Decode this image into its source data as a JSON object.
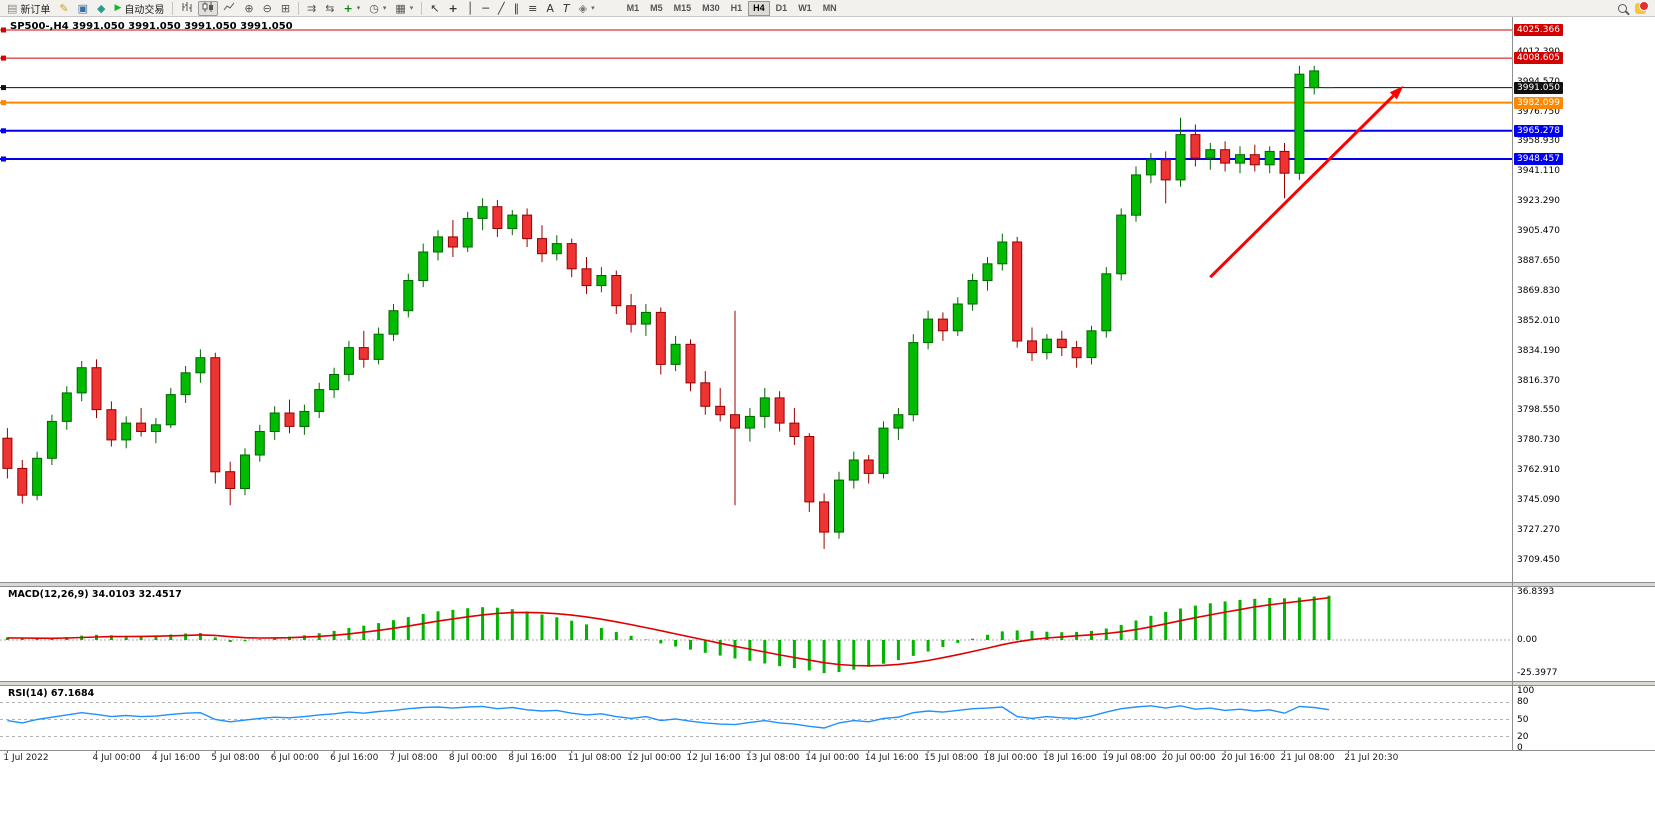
{
  "toolbar": {
    "new_order_label": "新订单",
    "autotrading_label": "自动交易",
    "timeframes": [
      "M1",
      "M5",
      "M15",
      "M30",
      "H1",
      "H4",
      "D1",
      "W1",
      "MN"
    ],
    "active_timeframe": "H4"
  },
  "icons": {
    "new_order": "▤",
    "metaeditor": "✎",
    "market": "▣",
    "signals": "◆",
    "autotrading": "▶",
    "zoom_in": "⊕",
    "zoom_out": "⊖",
    "grid": "⊞",
    "auto_scroll": "⇉",
    "chart_shift": "⇆",
    "indicators": "+",
    "periods": "◷",
    "templates": "▦",
    "caret": "▾",
    "cursor": "↖",
    "crosshair": "+",
    "vline": "│",
    "hline": "─",
    "trendline": "╱",
    "channel": "∥",
    "fibonacci": "≡",
    "text": "A",
    "text_label": "T",
    "shapes": "◈"
  },
  "chart": {
    "info_line": "SP500-,H4 3991.050 3991.050 3991.050 3991.050",
    "symbol": "SP500-",
    "period": "H4",
    "colors": {
      "up": "#00BB00",
      "up_border": "#006600",
      "down": "#EE3333",
      "down_border": "#990000",
      "arrow": "#FF0000",
      "macd_hist": "#00B400",
      "macd_signal": "#E00000",
      "rsi_line": "#1E90FF"
    },
    "price_levels": [
      {
        "label": "4025.366",
        "price": 4025.366,
        "color": "#D40000",
        "width": 1
      },
      {
        "label": "4008.605",
        "price": 4008.605,
        "color": "#D40000",
        "width": 1
      },
      {
        "label": "3991.050",
        "price": 3991.05,
        "color": "#111111",
        "width": 1
      },
      {
        "label": "3982.099",
        "price": 3982.099,
        "color": "#FF8800",
        "width": 2
      },
      {
        "label": "3965.278",
        "price": 3965.278,
        "color": "#0000EE",
        "width": 2
      },
      {
        "label": "3948.457",
        "price": 3948.457,
        "color": "#0000EE",
        "width": 2
      }
    ],
    "price_axis_ticks": [
      "4012.390",
      "3994.570",
      "3976.750",
      "3958.930",
      "3941.110",
      "3923.290",
      "3905.470",
      "3887.650",
      "3869.830",
      "3852.010",
      "3834.190",
      "3816.370",
      "3798.550",
      "3780.730",
      "3762.910",
      "3745.090",
      "3727.270",
      "3709.450"
    ],
    "time_axis": [
      {
        "label": "1 Jul 2022",
        "bar": 0
      },
      {
        "label": "4 Jul 00:00",
        "bar": 6
      },
      {
        "label": "4 Jul 16:00",
        "bar": 10
      },
      {
        "label": "5 Jul 08:00",
        "bar": 14
      },
      {
        "label": "6 Jul 00:00",
        "bar": 18
      },
      {
        "label": "6 Jul 16:00",
        "bar": 22
      },
      {
        "label": "7 Jul 08:00",
        "bar": 26
      },
      {
        "label": "8 Jul 00:00",
        "bar": 30
      },
      {
        "label": "8 Jul 16:00",
        "bar": 34
      },
      {
        "label": "11 Jul 08:00",
        "bar": 38
      },
      {
        "label": "12 Jul 00:00",
        "bar": 42
      },
      {
        "label": "12 Jul 16:00",
        "bar": 46
      },
      {
        "label": "13 Jul 08:00",
        "bar": 50
      },
      {
        "label": "14 Jul 00:00",
        "bar": 54
      },
      {
        "label": "14 Jul 16:00",
        "bar": 58
      },
      {
        "label": "15 Jul 08:00",
        "bar": 62
      },
      {
        "label": "18 Jul 00:00",
        "bar": 66
      },
      {
        "label": "18 Jul 16:00",
        "bar": 70
      },
      {
        "label": "19 Jul 08:00",
        "bar": 74
      },
      {
        "label": "20 Jul 00:00",
        "bar": 78
      },
      {
        "label": "20 Jul 16:00",
        "bar": 82
      },
      {
        "label": "21 Jul 08:00",
        "bar": 86
      },
      {
        "label": "21 Jul 20:30",
        "bar": 90.3
      }
    ]
  },
  "macd": {
    "title": "MACD(12,26,9) 34.0103 32.4517",
    "scale": [
      "36.8393",
      "0.00",
      "-25.3977"
    ]
  },
  "rsi": {
    "title": "RSI(14) 67.1684",
    "levels": [
      "100",
      "80",
      "50",
      "20",
      "0"
    ],
    "dashed": [
      80,
      50,
      20
    ]
  },
  "chart_data": {
    "type": "candlestick",
    "symbol": "SP500",
    "timeframe": "H4",
    "visible_range": {
      "from": "1 Jul 2022 00:00",
      "to": "21 Jul 2022 20:30"
    },
    "ohlc": [
      [
        3782,
        3788,
        3758,
        3764
      ],
      [
        3764,
        3769,
        3743,
        3748
      ],
      [
        3748,
        3774,
        3745,
        3770
      ],
      [
        3770,
        3796,
        3766,
        3792
      ],
      [
        3792,
        3813,
        3787,
        3809
      ],
      [
        3809,
        3828,
        3804,
        3824
      ],
      [
        3824,
        3829,
        3794,
        3799
      ],
      [
        3799,
        3804,
        3777,
        3781
      ],
      [
        3781,
        3795,
        3776,
        3791
      ],
      [
        3791,
        3800,
        3783,
        3786
      ],
      [
        3786,
        3794,
        3779,
        3790
      ],
      [
        3790,
        3812,
        3788,
        3808
      ],
      [
        3808,
        3825,
        3803,
        3821
      ],
      [
        3821,
        3835,
        3815,
        3830
      ],
      [
        3830,
        3833,
        3755,
        3762
      ],
      [
        3762,
        3768,
        3742,
        3752
      ],
      [
        3752,
        3776,
        3748,
        3772
      ],
      [
        3772,
        3790,
        3768,
        3786
      ],
      [
        3786,
        3801,
        3781,
        3797
      ],
      [
        3797,
        3805,
        3785,
        3789
      ],
      [
        3789,
        3802,
        3784,
        3798
      ],
      [
        3798,
        3815,
        3794,
        3811
      ],
      [
        3811,
        3824,
        3806,
        3820
      ],
      [
        3820,
        3840,
        3816,
        3836
      ],
      [
        3836,
        3846,
        3824,
        3829
      ],
      [
        3829,
        3848,
        3826,
        3844
      ],
      [
        3844,
        3862,
        3840,
        3858
      ],
      [
        3858,
        3880,
        3854,
        3876
      ],
      [
        3876,
        3898,
        3872,
        3893
      ],
      [
        3893,
        3906,
        3888,
        3902
      ],
      [
        3902,
        3912,
        3890,
        3896
      ],
      [
        3896,
        3917,
        3893,
        3913
      ],
      [
        3913,
        3925,
        3906,
        3920
      ],
      [
        3920,
        3924,
        3902,
        3907
      ],
      [
        3907,
        3918,
        3903,
        3915
      ],
      [
        3915,
        3919,
        3896,
        3901
      ],
      [
        3901,
        3909,
        3887,
        3892
      ],
      [
        3892,
        3903,
        3888,
        3898
      ],
      [
        3898,
        3901,
        3878,
        3883
      ],
      [
        3883,
        3890,
        3868,
        3873
      ],
      [
        3873,
        3884,
        3869,
        3879
      ],
      [
        3879,
        3882,
        3856,
        3861
      ],
      [
        3861,
        3868,
        3845,
        3850
      ],
      [
        3850,
        3862,
        3843,
        3857
      ],
      [
        3857,
        3860,
        3820,
        3826
      ],
      [
        3826,
        3843,
        3822,
        3838
      ],
      [
        3838,
        3841,
        3810,
        3815
      ],
      [
        3815,
        3822,
        3796,
        3801
      ],
      [
        3801,
        3812,
        3792,
        3796
      ],
      [
        3796,
        3858,
        3742,
        3788
      ],
      [
        3788,
        3800,
        3780,
        3795
      ],
      [
        3795,
        3812,
        3788,
        3806
      ],
      [
        3806,
        3810,
        3786,
        3791
      ],
      [
        3791,
        3800,
        3778,
        3783
      ],
      [
        3783,
        3785,
        3738,
        3744
      ],
      [
        3744,
        3749,
        3716,
        3726
      ],
      [
        3726,
        3762,
        3722,
        3757
      ],
      [
        3757,
        3774,
        3752,
        3769
      ],
      [
        3769,
        3772,
        3755,
        3761
      ],
      [
        3761,
        3792,
        3758,
        3788
      ],
      [
        3788,
        3800,
        3781,
        3796
      ],
      [
        3796,
        3844,
        3792,
        3839
      ],
      [
        3839,
        3858,
        3835,
        3853
      ],
      [
        3853,
        3857,
        3840,
        3846
      ],
      [
        3846,
        3866,
        3843,
        3862
      ],
      [
        3862,
        3880,
        3858,
        3876
      ],
      [
        3876,
        3890,
        3870,
        3886
      ],
      [
        3886,
        3904,
        3882,
        3899
      ],
      [
        3899,
        3902,
        3836,
        3840
      ],
      [
        3840,
        3848,
        3828,
        3833
      ],
      [
        3833,
        3844,
        3829,
        3841
      ],
      [
        3841,
        3846,
        3831,
        3836
      ],
      [
        3836,
        3840,
        3824,
        3830
      ],
      [
        3830,
        3849,
        3826,
        3846
      ],
      [
        3846,
        3884,
        3842,
        3880
      ],
      [
        3880,
        3919,
        3876,
        3915
      ],
      [
        3915,
        3944,
        3911,
        3939
      ],
      [
        3939,
        3952,
        3934,
        3948
      ],
      [
        3948,
        3953,
        3922,
        3936
      ],
      [
        3936,
        3973,
        3932,
        3963
      ],
      [
        3963,
        3969,
        3944,
        3949
      ],
      [
        3949,
        3958,
        3942,
        3954
      ],
      [
        3954,
        3959,
        3941,
        3946
      ],
      [
        3946,
        3956,
        3940,
        3951
      ],
      [
        3951,
        3957,
        3941,
        3945
      ],
      [
        3945,
        3956,
        3940,
        3953
      ],
      [
        3953,
        3958,
        3925,
        3940
      ],
      [
        3940,
        4004,
        3936,
        3999
      ],
      [
        3991,
        4004,
        3987,
        4001
      ],
      [
        3991.05,
        3991.05,
        3991.05,
        3991.05
      ]
    ],
    "macd_hist": [
      2.0,
      1.2,
      0.8,
      1.2,
      2.2,
      3.4,
      4.0,
      3.6,
      3.2,
      3.0,
      3.4,
      4.2,
      5.0,
      5.4,
      2.0,
      -1.5,
      -1.0,
      0.5,
      1.8,
      2.6,
      3.6,
      5.2,
      7.0,
      9.2,
      11.0,
      13.0,
      15.2,
      17.6,
      20.0,
      22.0,
      23.2,
      24.4,
      25.2,
      24.8,
      23.6,
      21.8,
      19.6,
      17.4,
      14.8,
      12.0,
      9.2,
      6.2,
      3.2,
      0.4,
      -2.6,
      -5.0,
      -7.4,
      -9.8,
      -12.0,
      -14.2,
      -16.0,
      -18.0,
      -20.0,
      -21.6,
      -23.4,
      -25.4,
      -24.6,
      -22.8,
      -20.6,
      -18.2,
      -15.4,
      -12.2,
      -8.8,
      -5.4,
      -2.2,
      1.0,
      4.0,
      6.6,
      7.4,
      7.0,
      6.4,
      6.0,
      6.2,
      7.0,
      8.8,
      11.6,
      15.0,
      18.6,
      21.6,
      24.2,
      26.4,
      28.2,
      29.6,
      30.8,
      31.6,
      32.2,
      32.0,
      32.6,
      33.4,
      34.0103
    ],
    "macd_signal": [
      1.6,
      1.5,
      1.4,
      1.3,
      1.5,
      1.9,
      2.3,
      2.6,
      2.7,
      2.8,
      2.9,
      3.2,
      3.5,
      3.9,
      3.5,
      2.5,
      1.8,
      1.5,
      1.6,
      1.8,
      2.2,
      2.8,
      3.6,
      4.7,
      6.0,
      7.4,
      9.0,
      10.7,
      12.6,
      14.5,
      16.2,
      17.8,
      19.3,
      20.4,
      21.0,
      21.2,
      20.9,
      20.2,
      19.1,
      17.7,
      16.0,
      14.0,
      11.8,
      9.5,
      7.1,
      4.7,
      2.3,
      -0.1,
      -2.5,
      -4.8,
      -7.0,
      -9.2,
      -11.4,
      -13.4,
      -15.4,
      -17.4,
      -18.8,
      -19.6,
      -19.8,
      -19.5,
      -18.7,
      -17.4,
      -15.7,
      -13.6,
      -11.3,
      -8.8,
      -6.2,
      -3.6,
      -1.4,
      0.3,
      1.5,
      2.4,
      3.2,
      4.0,
      5.0,
      6.3,
      8.0,
      10.1,
      12.4,
      14.8,
      17.1,
      19.3,
      21.4,
      23.3,
      25.4,
      27.0,
      28.4,
      29.7,
      31.1,
      32.4517
    ],
    "rsi": [
      48,
      44,
      50,
      54,
      58,
      62,
      59,
      55,
      57,
      55,
      56,
      59,
      61,
      62,
      50,
      46,
      49,
      52,
      54,
      53,
      55,
      58,
      60,
      63,
      61,
      64,
      66,
      69,
      71,
      72,
      70,
      72,
      73,
      69,
      71,
      67,
      65,
      66,
      61,
      58,
      60,
      55,
      52,
      55,
      48,
      51,
      47,
      44,
      42,
      41,
      45,
      48,
      44,
      42,
      38,
      35,
      44,
      48,
      46,
      52,
      54,
      62,
      65,
      63,
      66,
      69,
      70,
      72,
      55,
      52,
      55,
      53,
      52,
      56,
      63,
      69,
      72,
      74,
      70,
      74,
      68,
      70,
      66,
      68,
      65,
      67,
      61,
      73,
      71,
      67.1684
    ],
    "trend_arrow": {
      "from_bar": 81,
      "from_price": 3878,
      "to_bar": 94,
      "to_price": 3992,
      "color": "#FF0000"
    }
  }
}
